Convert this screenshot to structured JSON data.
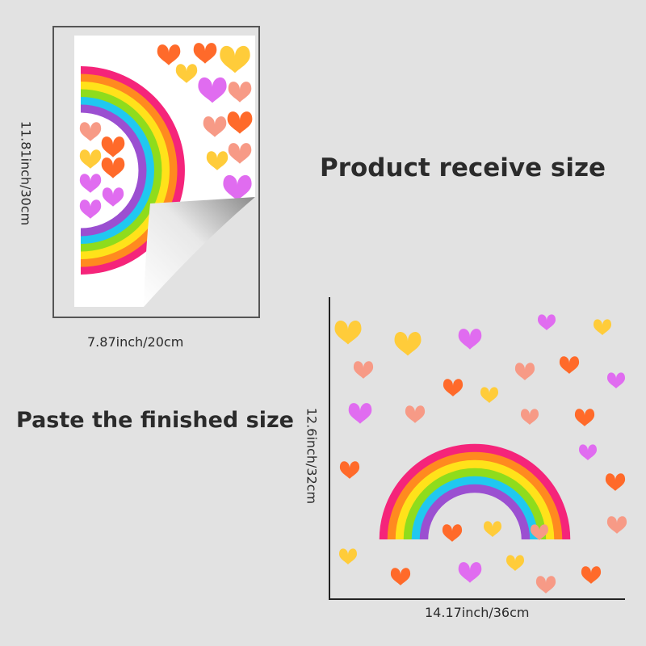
{
  "headline_receive": "Product receive size",
  "headline_paste": "Paste the finished size",
  "sheet": {
    "height_label": "11.81inch/30cm",
    "width_label": "7.87inch/20cm"
  },
  "finished": {
    "height_label": "12.6inch/32cm",
    "width_label": "14.17inch/36cm"
  },
  "colors": {
    "background": "#e2e2e2",
    "rainbow": [
      "#f5247a",
      "#ff8a1f",
      "#ffe21a",
      "#8fdc1c",
      "#20c8f0",
      "#9b4fd1"
    ],
    "hearts": [
      "#ff6a2a",
      "#ffcc3a",
      "#e06cf0",
      "#f79a86"
    ]
  }
}
